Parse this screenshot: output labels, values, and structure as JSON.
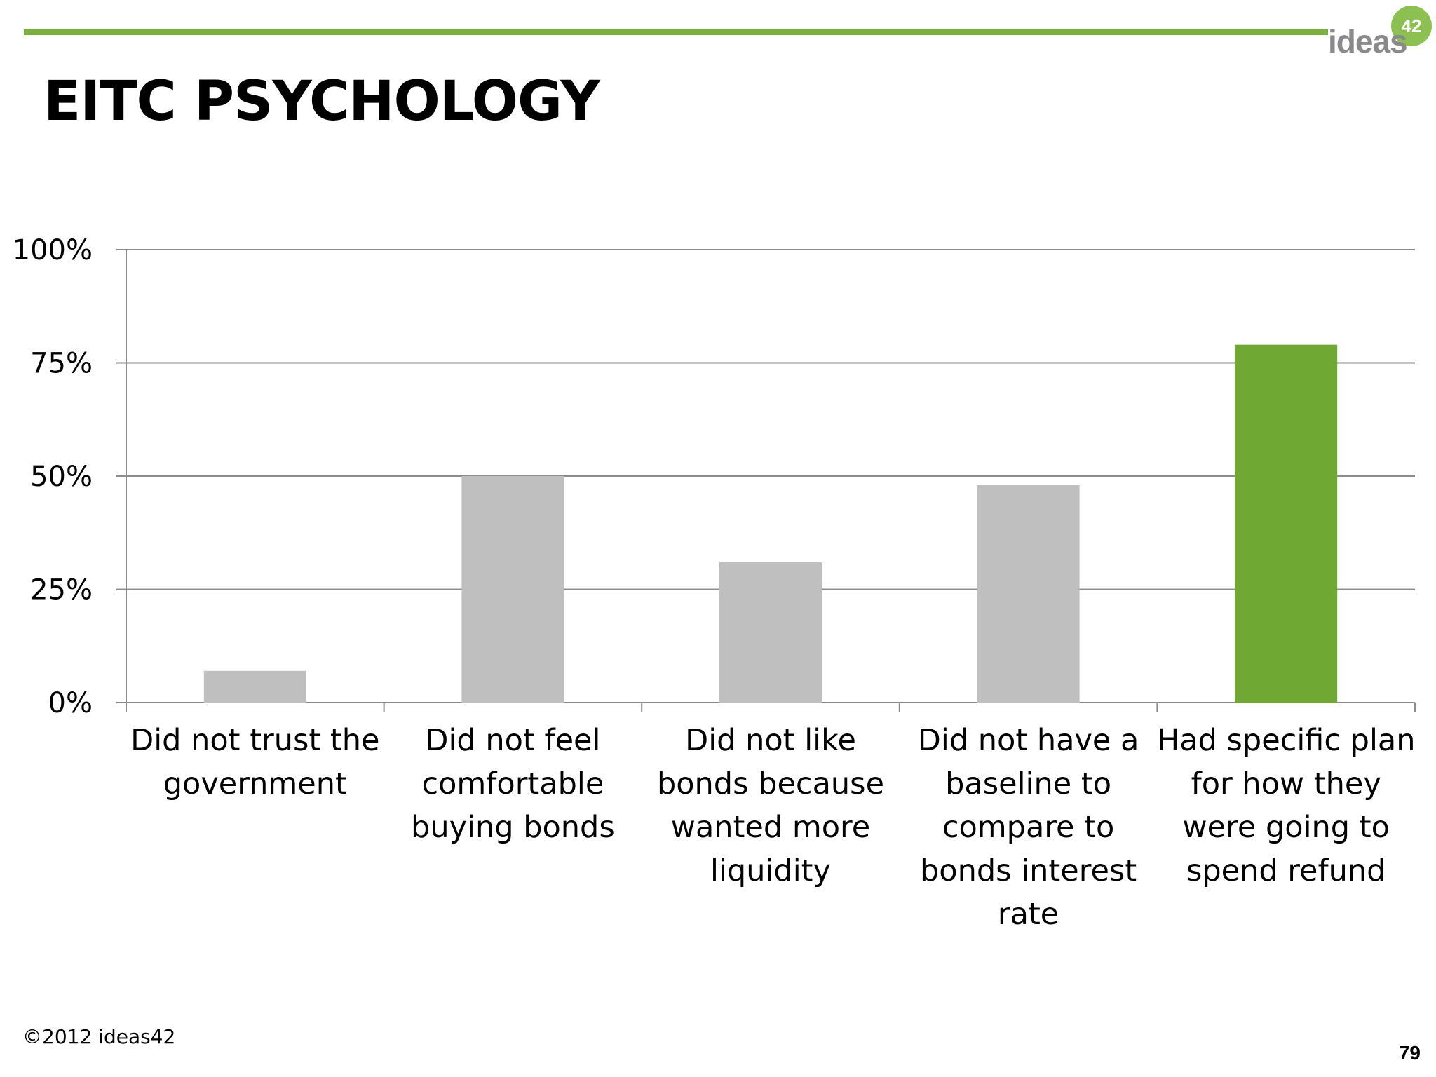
{
  "header": {
    "title": "EITC PSYCHOLOGY",
    "logo_text": "ideas",
    "logo_badge": "42",
    "accent_color": "#7ab041"
  },
  "chart_data": {
    "type": "bar",
    "categories": [
      [
        "Did not trust the",
        "government"
      ],
      [
        "Did not feel",
        "comfortable",
        "buying bonds"
      ],
      [
        "Did not like",
        "bonds because",
        "wanted more",
        "liquidity"
      ],
      [
        "Did not have a",
        "baseline to",
        "compare to",
        "bonds interest",
        "rate"
      ],
      [
        "Had specific plan",
        "for how they",
        "were going to",
        "spend refund"
      ]
    ],
    "values": [
      7,
      50,
      31,
      48,
      79
    ],
    "bar_colors": [
      "#bfbfbf",
      "#bfbfbf",
      "#bfbfbf",
      "#bfbfbf",
      "#6fa832"
    ],
    "title": "",
    "xlabel": "",
    "ylabel": "",
    "ylim": [
      0,
      100
    ],
    "yticks": [
      0,
      25,
      50,
      75,
      100
    ],
    "ytick_labels": [
      "0%",
      "25%",
      "50%",
      "75%",
      "100%"
    ],
    "grid": true,
    "legend": "none"
  },
  "footer": {
    "copyright": "©2012 ideas42",
    "page_number": "79"
  }
}
